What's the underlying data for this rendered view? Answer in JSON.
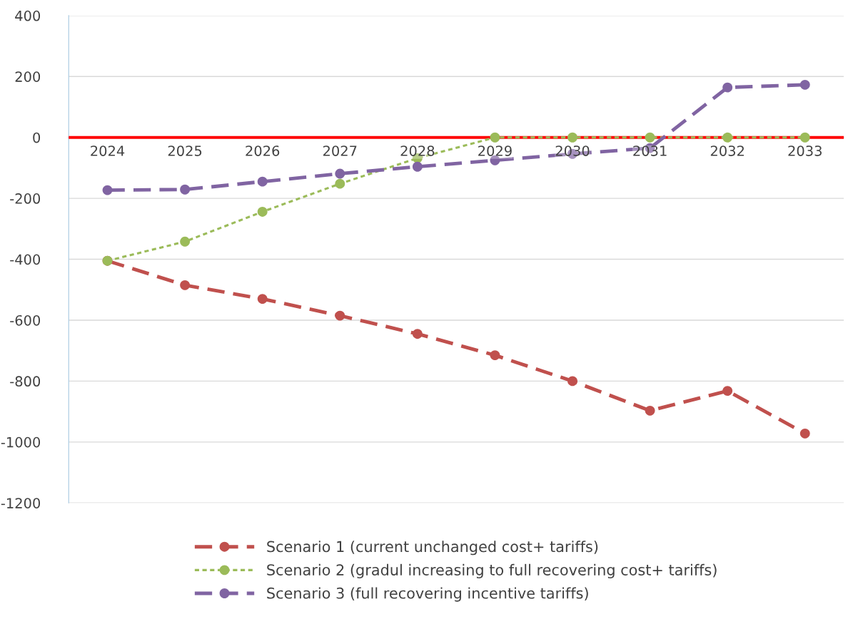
{
  "chart_data": {
    "type": "line",
    "categories": [
      "2024",
      "2025",
      "2026",
      "2027",
      "2028",
      "2029",
      "2030",
      "2031",
      "2032",
      "2033"
    ],
    "series": [
      {
        "name": "Scenario 1 (current unchanged cost+ tariffs)",
        "color": "#c0504d",
        "line_style": "dashed",
        "values": [
          -405,
          -485,
          -530,
          -585,
          -645,
          -715,
          -800,
          -897,
          -832,
          -972
        ]
      },
      {
        "name": "Scenario 2 (gradul increasing to full recovering cost+ tariffs)",
        "color": "#9bbb59",
        "line_style": "dotted",
        "values": [
          -405,
          -342,
          -244,
          -152,
          -68,
          0,
          0,
          0,
          0,
          0
        ]
      },
      {
        "name": "Scenario 3 (full recovering incentive tariffs)",
        "color": "#8064a2",
        "line_style": "dashed",
        "values": [
          -173,
          -171,
          -145,
          -119,
          -96,
          -75,
          -54,
          -35,
          164,
          173
        ]
      }
    ],
    "ylim": [
      -1200,
      400
    ],
    "yticks": [
      -1200,
      -1000,
      -800,
      -600,
      -400,
      -200,
      0,
      200,
      400
    ],
    "ref_lines": [
      {
        "axis": "y",
        "value": 0,
        "color": "#ff0000"
      }
    ],
    "grid": "y",
    "legend": "bottom",
    "marker": "circle"
  }
}
